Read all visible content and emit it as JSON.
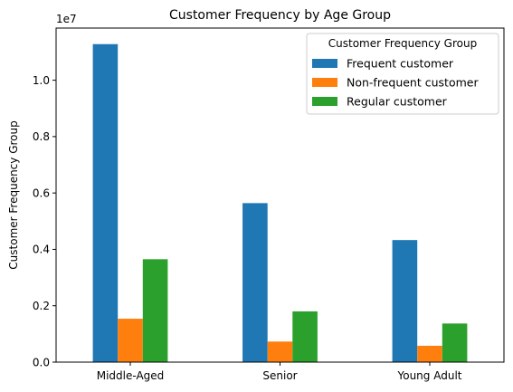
{
  "chart_data": {
    "type": "bar",
    "title": "Customer Frequency by Age Group",
    "xlabel": "",
    "ylabel": "Customer Frequency Group",
    "y_offset_label": "1e7",
    "y_scale": 10000000,
    "ylim": [
      0,
      11850000
    ],
    "yticks": [
      0,
      2000000,
      4000000,
      6000000,
      8000000,
      10000000
    ],
    "ytick_labels": [
      "0.0",
      "0.2",
      "0.4",
      "0.6",
      "0.8",
      "1.0"
    ],
    "categories": [
      "Middle-Aged",
      "Senior",
      "Young Adult"
    ],
    "series": [
      {
        "name": "Frequent customer",
        "color": "#1f77b4",
        "values": [
          11280000,
          5640000,
          4330000
        ]
      },
      {
        "name": "Non-frequent customer",
        "color": "#ff7f0e",
        "values": [
          1540000,
          730000,
          580000
        ]
      },
      {
        "name": "Regular customer",
        "color": "#2ca02c",
        "values": [
          3650000,
          1800000,
          1370000
        ]
      }
    ],
    "legend": {
      "title": "Customer Frequency Group",
      "placement": "top-right"
    },
    "grid": false
  }
}
